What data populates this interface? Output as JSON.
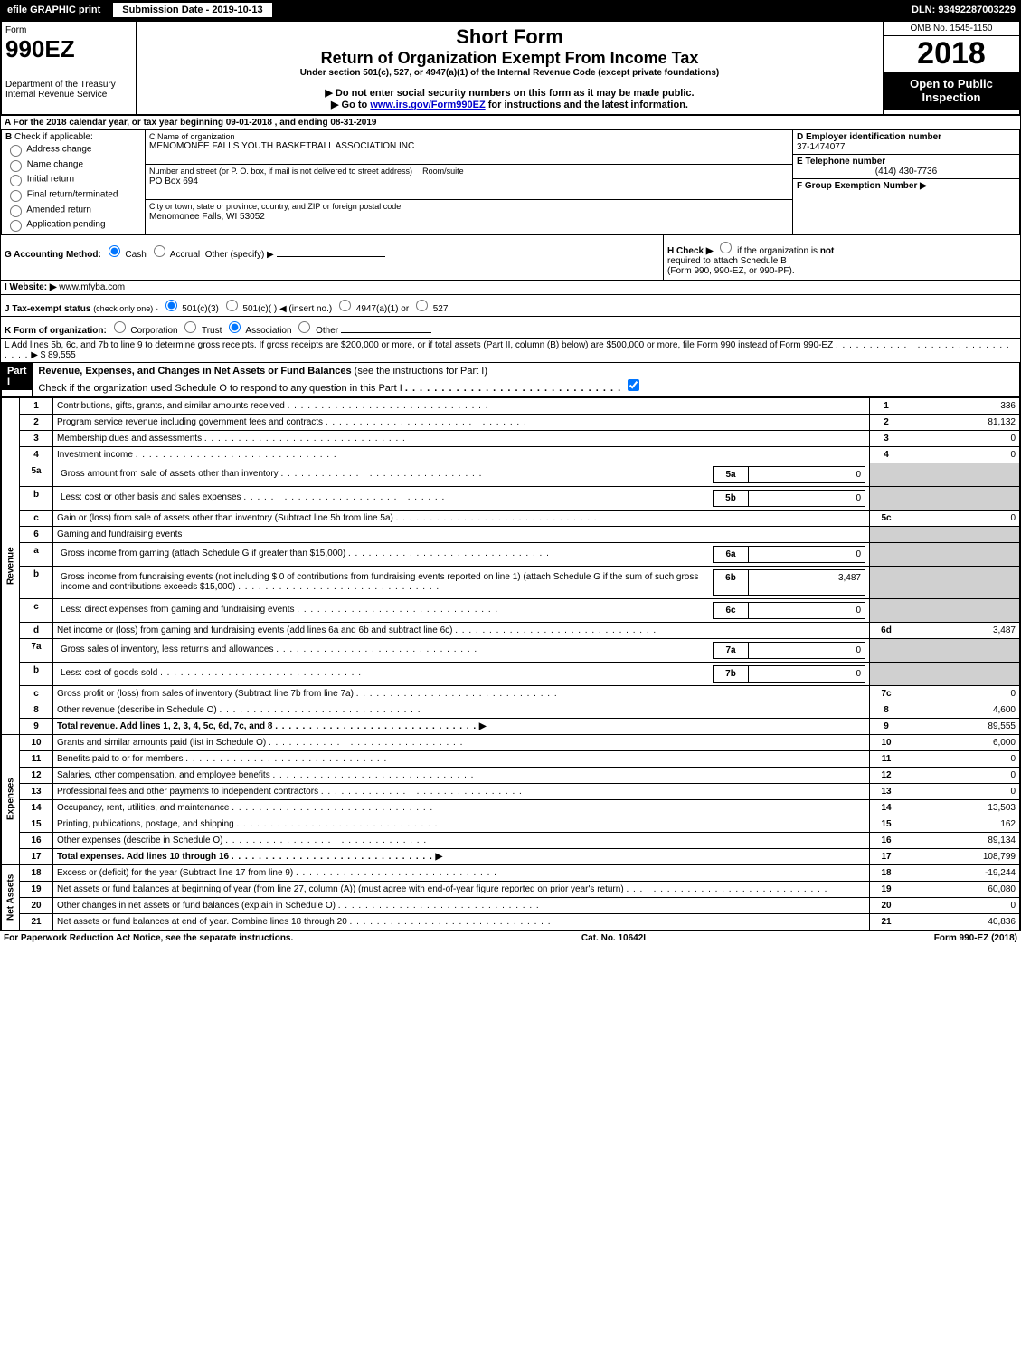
{
  "top": {
    "efile": "efile GRAPHIC print",
    "submission": "Submission Date - 2019-10-13",
    "dln": "DLN: 93492287003229"
  },
  "header": {
    "form": "Form",
    "formNum": "990EZ",
    "dept": "Department of the Treasury",
    "irs": "Internal Revenue Service",
    "shortForm": "Short Form",
    "title": "Return of Organization Exempt From Income Tax",
    "under": "Under section 501(c), 527, or 4947(a)(1) of the Internal Revenue Code (except private foundations)",
    "notice1": "▶ Do not enter social security numbers on this form as it may be made public.",
    "notice2_pre": "▶ Go to ",
    "notice2_link": "www.irs.gov/Form990EZ",
    "notice2_post": " for instructions and the latest information.",
    "omb": "OMB No. 1545-1150",
    "year": "2018",
    "open": "Open to Public Inspection"
  },
  "sectionA": {
    "text_pre": "A  For the 2018 calendar year, or tax year beginning ",
    "begin": "09-01-2018",
    "mid": " , and ending ",
    "end": "08-31-2019"
  },
  "sectionB": {
    "label": "B",
    "check": "Check if applicable:",
    "opts": [
      "Address change",
      "Name change",
      "Initial return",
      "Final return/terminated",
      "Amended return",
      "Application pending"
    ]
  },
  "sectionC": {
    "label": "C Name of organization",
    "name": "MENOMONEE FALLS YOUTH BASKETBALL ASSOCIATION INC",
    "addr_label": "Number and street (or P. O. box, if mail is not delivered to street address)",
    "room_label": "Room/suite",
    "addr": "PO Box 694",
    "city_label": "City or town, state or province, country, and ZIP or foreign postal code",
    "city": "Menomonee Falls, WI  53052"
  },
  "sectionD": {
    "label": "D Employer identification number",
    "val": "37-1474077"
  },
  "sectionE": {
    "label": "E Telephone number",
    "val": "(414) 430-7736"
  },
  "sectionF": {
    "label": "F Group Exemption Number  ▶"
  },
  "sectionG": {
    "label": "G Accounting Method:",
    "opts": [
      "Cash",
      "Accrual"
    ],
    "other": "Other (specify) ▶"
  },
  "sectionH": {
    "label": "H  Check ▶",
    "text": "if the organization is",
    "not": "not",
    "req": "required to attach Schedule B",
    "form": "(Form 990, 990-EZ, or 990-PF)."
  },
  "sectionI": {
    "label": "I Website: ▶",
    "val": "www.mfyba.com"
  },
  "sectionJ": {
    "label": "J Tax-exempt status",
    "sub": "(check only one) -",
    "opts": [
      "501(c)(3)",
      "501(c)(  ) ◀ (insert no.)",
      "4947(a)(1) or",
      "527"
    ]
  },
  "sectionK": {
    "label": "K Form of organization:",
    "opts": [
      "Corporation",
      "Trust",
      "Association",
      "Other"
    ]
  },
  "sectionL": {
    "text": "L Add lines 5b, 6c, and 7b to line 9 to determine gross receipts. If gross receipts are $200,000 or more, or if total assets (Part II, column (B) below) are $500,000 or more, file Form 990 instead of Form 990-EZ",
    "arrow": "▶ $",
    "val": "89,555"
  },
  "part1": {
    "tab": "Part I",
    "title": "Revenue, Expenses, and Changes in Net Assets or Fund Balances",
    "sub": "(see the instructions for Part I)",
    "check": "Check if the organization used Schedule O to respond to any question in this Part I"
  },
  "sections": {
    "rev": "Revenue",
    "exp": "Expenses",
    "na": "Net Assets"
  },
  "lines": [
    {
      "n": "1",
      "d": "Contributions, gifts, grants, and similar amounts received",
      "b": "1",
      "v": "336"
    },
    {
      "n": "2",
      "d": "Program service revenue including government fees and contracts",
      "b": "2",
      "v": "81,132"
    },
    {
      "n": "3",
      "d": "Membership dues and assessments",
      "b": "3",
      "v": "0"
    },
    {
      "n": "4",
      "d": "Investment income",
      "b": "4",
      "v": "0"
    },
    {
      "n": "5a",
      "d": "Gross amount from sale of assets other than inventory",
      "ib": "5a",
      "iv": "0"
    },
    {
      "n": "b",
      "d": "Less: cost or other basis and sales expenses",
      "ib": "5b",
      "iv": "0"
    },
    {
      "n": "c",
      "d": "Gain or (loss) from sale of assets other than inventory (Subtract line 5b from line 5a)",
      "b": "5c",
      "v": "0"
    },
    {
      "n": "6",
      "d": "Gaming and fundraising events"
    },
    {
      "n": "a",
      "d": "Gross income from gaming (attach Schedule G if greater than $15,000)",
      "ib": "6a",
      "iv": "0"
    },
    {
      "n": "b",
      "d": "Gross income from fundraising events (not including $  0             of contributions from fundraising events reported on line 1) (attach Schedule G if the sum of such gross income and contributions exceeds $15,000)",
      "ib": "6b",
      "iv": "3,487"
    },
    {
      "n": "c",
      "d": "Less: direct expenses from gaming and fundraising events",
      "ib": "6c",
      "iv": "0"
    },
    {
      "n": "d",
      "d": "Net income or (loss) from gaming and fundraising events (add lines 6a and 6b and subtract line 6c)",
      "b": "6d",
      "v": "3,487"
    },
    {
      "n": "7a",
      "d": "Gross sales of inventory, less returns and allowances",
      "ib": "7a",
      "iv": "0"
    },
    {
      "n": "b",
      "d": "Less: cost of goods sold",
      "ib": "7b",
      "iv": "0"
    },
    {
      "n": "c",
      "d": "Gross profit or (loss) from sales of inventory (Subtract line 7b from line 7a)",
      "b": "7c",
      "v": "0"
    },
    {
      "n": "8",
      "d": "Other revenue (describe in Schedule O)",
      "b": "8",
      "v": "4,600"
    },
    {
      "n": "9",
      "d": "Total revenue. Add lines 1, 2, 3, 4, 5c, 6d, 7c, and 8",
      "b": "9",
      "v": "89,555",
      "bold": true,
      "arrow": true
    },
    {
      "n": "10",
      "d": "Grants and similar amounts paid (list in Schedule O)",
      "b": "10",
      "v": "6,000"
    },
    {
      "n": "11",
      "d": "Benefits paid to or for members",
      "b": "11",
      "v": "0"
    },
    {
      "n": "12",
      "d": "Salaries, other compensation, and employee benefits",
      "b": "12",
      "v": "0"
    },
    {
      "n": "13",
      "d": "Professional fees and other payments to independent contractors",
      "b": "13",
      "v": "0"
    },
    {
      "n": "14",
      "d": "Occupancy, rent, utilities, and maintenance",
      "b": "14",
      "v": "13,503"
    },
    {
      "n": "15",
      "d": "Printing, publications, postage, and shipping",
      "b": "15",
      "v": "162"
    },
    {
      "n": "16",
      "d": "Other expenses (describe in Schedule O)",
      "b": "16",
      "v": "89,134"
    },
    {
      "n": "17",
      "d": "Total expenses. Add lines 10 through 16",
      "b": "17",
      "v": "108,799",
      "bold": true,
      "arrow": true
    },
    {
      "n": "18",
      "d": "Excess or (deficit) for the year (Subtract line 17 from line 9)",
      "b": "18",
      "v": "-19,244"
    },
    {
      "n": "19",
      "d": "Net assets or fund balances at beginning of year (from line 27, column (A)) (must agree with end-of-year figure reported on prior year's return)",
      "b": "19",
      "v": "60,080"
    },
    {
      "n": "20",
      "d": "Other changes in net assets or fund balances (explain in Schedule O)",
      "b": "20",
      "v": "0"
    },
    {
      "n": "21",
      "d": "Net assets or fund balances at end of year. Combine lines 18 through 20",
      "b": "21",
      "v": "40,836"
    }
  ],
  "footer": {
    "left": "For Paperwork Reduction Act Notice, see the separate instructions.",
    "mid": "Cat. No. 10642I",
    "right": "Form 990-EZ (2018)"
  }
}
